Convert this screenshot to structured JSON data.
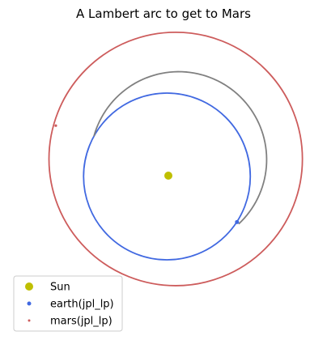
{
  "chart_data": {
    "type": "scatter",
    "title": "A Lambert arc to get to Mars",
    "xlabel": "",
    "ylabel": "",
    "axes_visible": false,
    "grid": false,
    "aspect": "equal",
    "legend_placement": "lower-left",
    "units": "au",
    "series": [
      {
        "name": "Sun",
        "kind": "marker",
        "color": "#bfbf00",
        "points": [
          [
            0.0,
            0.0
          ]
        ]
      },
      {
        "name": "earth(jpl_lp)",
        "kind": "orbit",
        "color": "#4169e1",
        "center": [
          -0.017,
          -0.01
        ],
        "radius": 1.0,
        "marker_at": [
          0.823,
          -0.557
        ]
      },
      {
        "name": "mars(jpl_lp)",
        "kind": "orbit",
        "color": "#cd5c5c",
        "center": [
          0.088,
          0.2
        ],
        "radius": 1.52,
        "marker_at": [
          -1.35,
          0.6
        ]
      },
      {
        "name": "",
        "kind": "transfer-arc",
        "color": "#808080",
        "center": [
          0.124,
          0.192
        ],
        "radius": 1.055,
        "from": [
          0.823,
          -0.557
        ],
        "to": [
          -1.35,
          0.6
        ],
        "direction": "counter-clockwise"
      }
    ]
  }
}
